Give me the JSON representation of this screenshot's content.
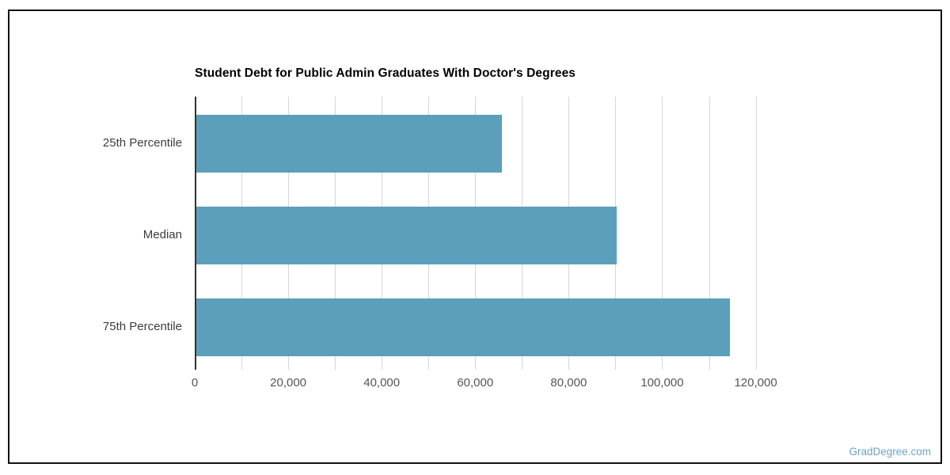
{
  "page": {
    "watermark": "GradDegree.com",
    "watermark_color": "#6fa3c2",
    "border_color": "#111111",
    "background": "#ffffff"
  },
  "chart_data": {
    "type": "bar",
    "orientation": "horizontal",
    "title": "Student Debt for Public Admin Graduates With Doctor's Degrees",
    "categories": [
      "25th Percentile",
      "Median",
      "75th Percentile"
    ],
    "values": [
      65300,
      90000,
      114200
    ],
    "xlabel": "",
    "ylabel": "",
    "xlim": [
      0,
      120000
    ],
    "axis_max_render": 126000,
    "x_major_ticks": [
      0,
      20000,
      40000,
      60000,
      80000,
      100000,
      120000
    ],
    "x_tick_labels": [
      "0",
      "20,000",
      "40,000",
      "60,000",
      "80,000",
      "100,000",
      "120,000"
    ],
    "x_minor_gridline_step": 10000,
    "grid": true,
    "legend": "none",
    "bar_color": "#5C9FBA",
    "gridline_color": "#d6d6d6",
    "axis_line_color": "#333333",
    "tick_label_color": "#555555",
    "category_label_color": "#3c3c3c",
    "title_color": "#000000"
  }
}
